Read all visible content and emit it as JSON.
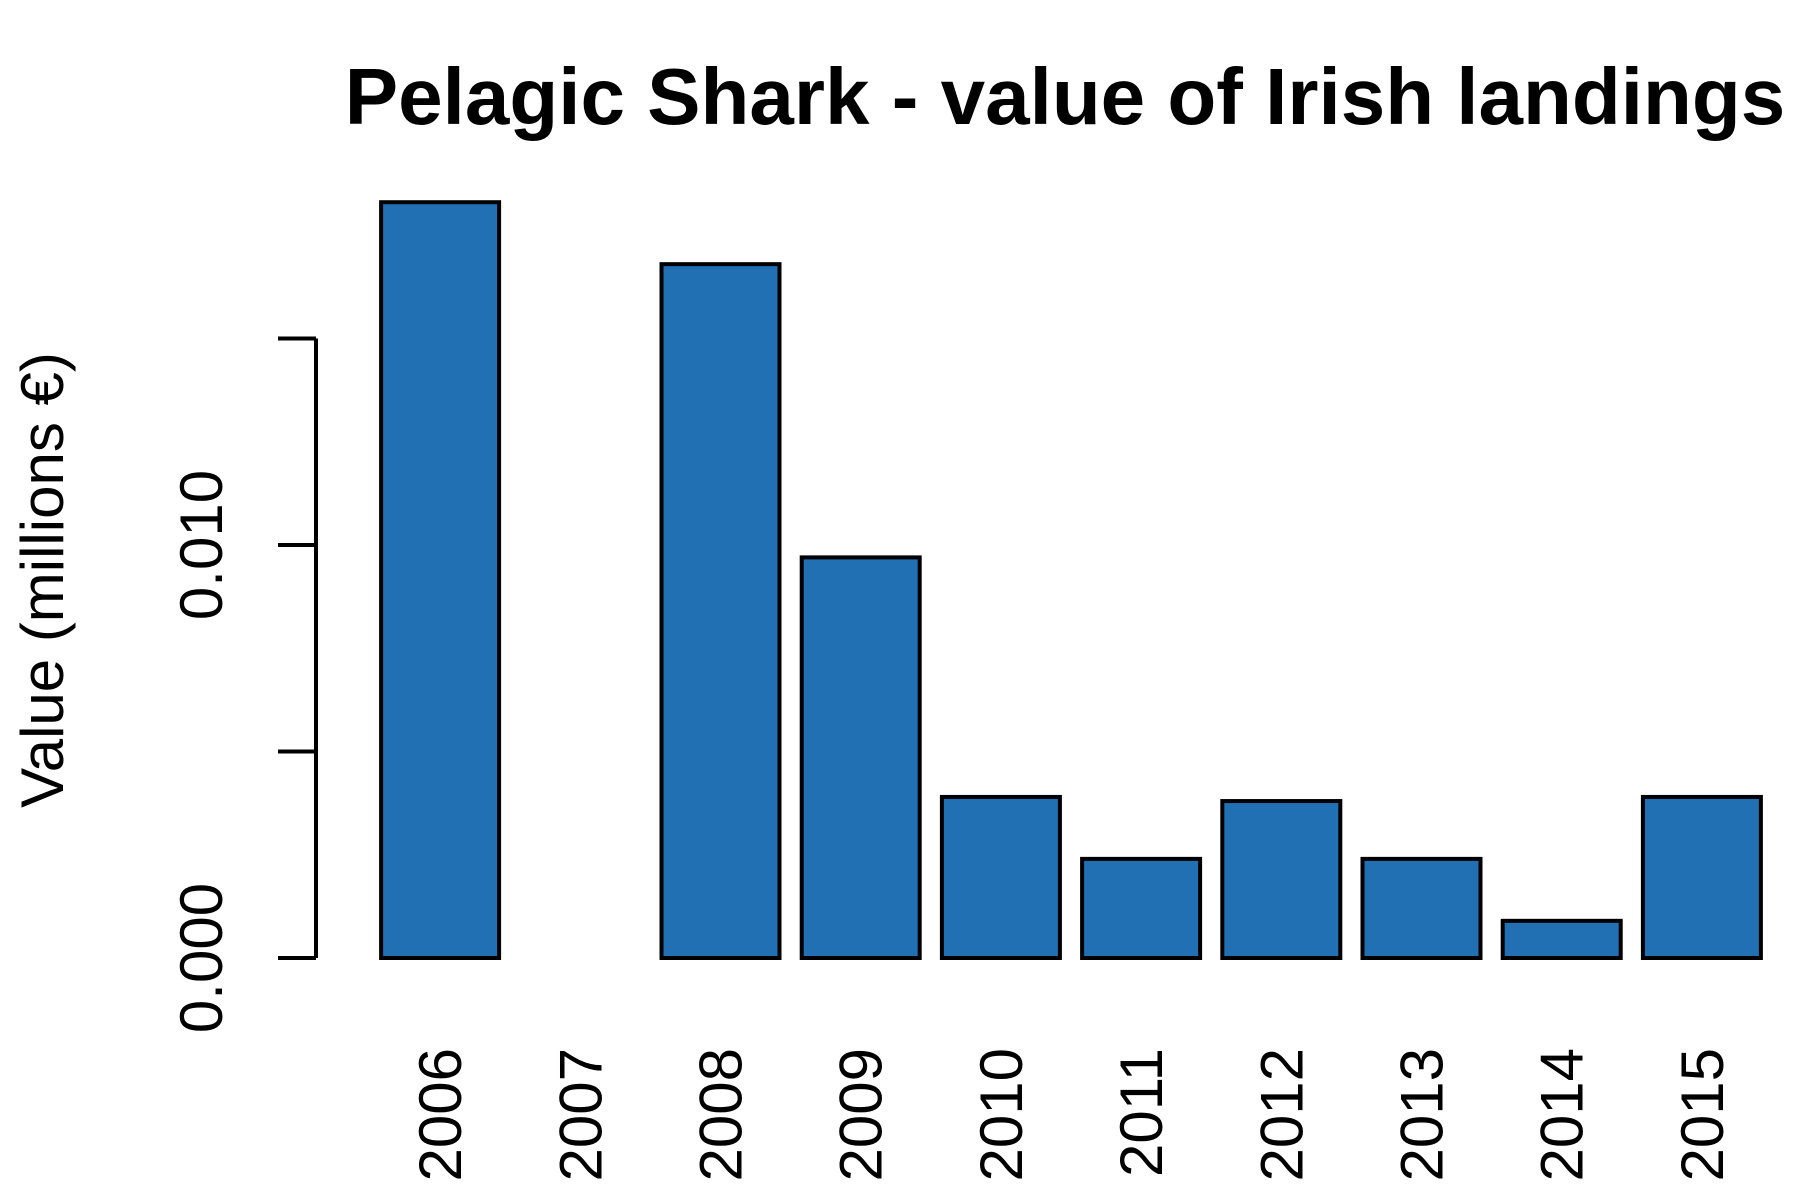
{
  "chart_data": {
    "type": "bar",
    "title": "Pelagic Shark - value of Irish landings",
    "ylabel": "Value (millions €)",
    "xlabel": "",
    "categories": [
      "2006",
      "2007",
      "2008",
      "2009",
      "2010",
      "2011",
      "2012",
      "2013",
      "2014",
      "2015"
    ],
    "values": [
      0.0183,
      0.0,
      0.0168,
      0.0097,
      0.0039,
      0.0024,
      0.0038,
      0.0024,
      0.0009,
      0.0039
    ],
    "ylim": [
      0,
      0.0185
    ],
    "yticks": [
      0.0,
      0.005,
      0.01,
      0.015
    ],
    "ytick_labels": [
      "0.000",
      "",
      "0.010",
      ""
    ],
    "bar_color": "#2270B4",
    "grid": false,
    "legend": "none"
  }
}
